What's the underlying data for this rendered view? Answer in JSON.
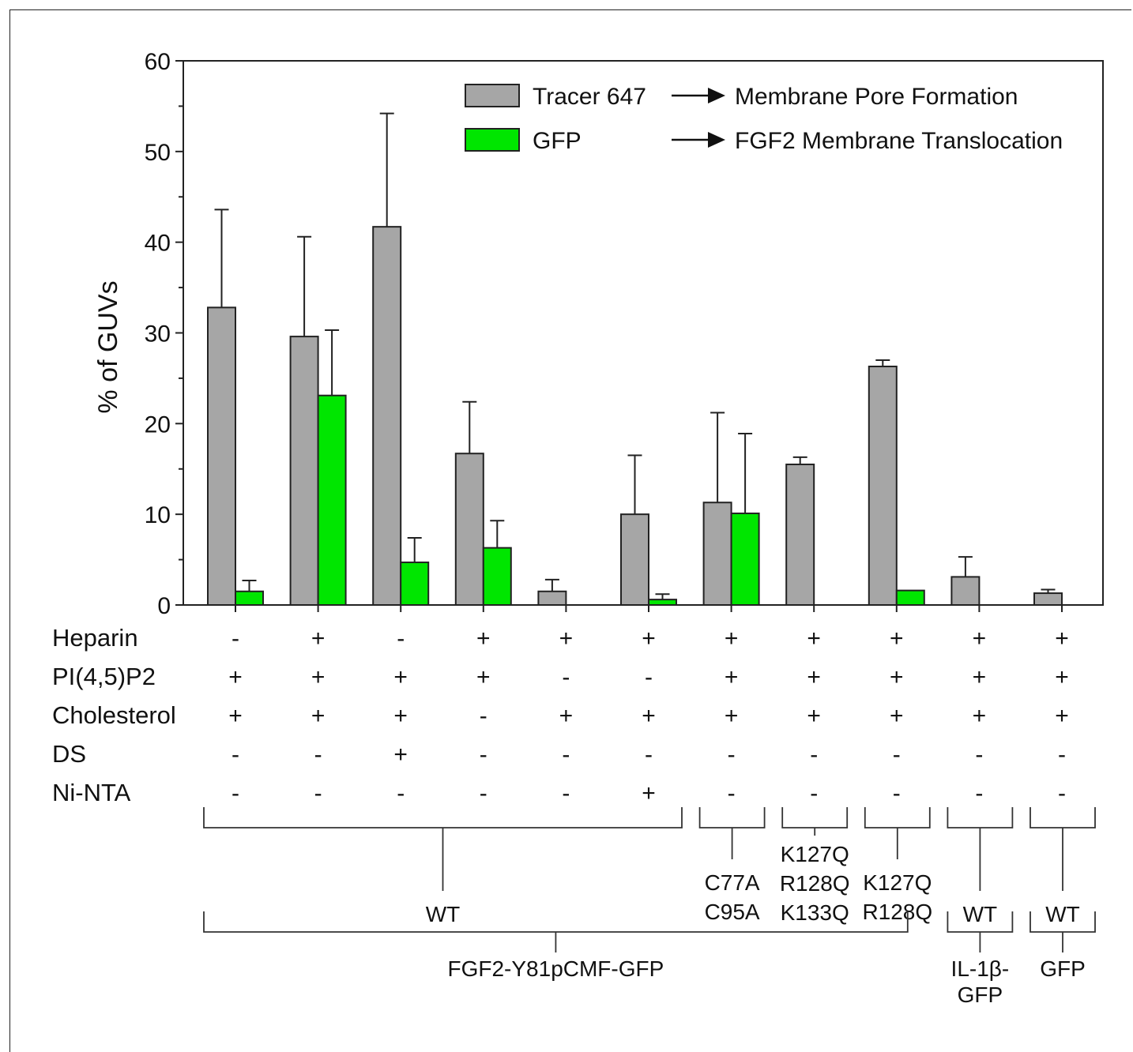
{
  "chart_data": {
    "type": "bar",
    "ylabel": "% of GUVs",
    "ylim": [
      0,
      60
    ],
    "yticks": [
      0,
      10,
      20,
      30,
      40,
      50,
      60
    ],
    "grid": false,
    "legend_position": "top-right",
    "series": [
      {
        "name": "Tracer 647",
        "meaning": "Membrane Pore Formation",
        "color": "#a6a6a6",
        "values": [
          32.8,
          29.6,
          41.7,
          16.7,
          1.5,
          10.0,
          11.3,
          15.5,
          26.3,
          3.1,
          1.3
        ],
        "errors": [
          10.8,
          11.0,
          12.5,
          5.7,
          1.3,
          6.5,
          9.9,
          0.8,
          0.7,
          2.2,
          0.4
        ]
      },
      {
        "name": "GFP",
        "meaning": "FGF2 Membrane Translocation",
        "color": "#00e600",
        "values": [
          1.5,
          23.1,
          4.7,
          6.3,
          0,
          0.6,
          10.1,
          0,
          1.6,
          0,
          0
        ],
        "errors": [
          1.2,
          7.2,
          2.7,
          3.0,
          0,
          0.6,
          8.8,
          0,
          0,
          0,
          0
        ]
      }
    ],
    "conditions": [
      {
        "label": "Heparin",
        "values": [
          "-",
          "+",
          "-",
          "+",
          "+",
          "+",
          "+",
          "+",
          "+",
          "+",
          "+"
        ]
      },
      {
        "label": "PI(4,5)P2",
        "values": [
          "+",
          "+",
          "+",
          "+",
          "-",
          "-",
          "+",
          "+",
          "+",
          "+",
          "+"
        ]
      },
      {
        "label": "Cholesterol",
        "values": [
          "+",
          "+",
          "+",
          "-",
          "+",
          "+",
          "+",
          "+",
          "+",
          "+",
          "+"
        ]
      },
      {
        "label": "DS",
        "values": [
          "-",
          "-",
          "+",
          "-",
          "-",
          "-",
          "-",
          "-",
          "-",
          "-",
          "-"
        ]
      },
      {
        "label": "Ni-NTA",
        "values": [
          "-",
          "-",
          "-",
          "-",
          "-",
          "+",
          "-",
          "-",
          "-",
          "-",
          "-"
        ]
      }
    ],
    "variant_groups": [
      {
        "from": 0,
        "to": 5,
        "lines": [
          "WT"
        ]
      },
      {
        "from": 6,
        "to": 6,
        "lines": [
          "C77A",
          "C95A"
        ]
      },
      {
        "from": 7,
        "to": 7,
        "lines": [
          "K127Q",
          "R128Q",
          "K133Q"
        ]
      },
      {
        "from": 8,
        "to": 8,
        "lines": [
          "K127Q",
          "R128Q"
        ]
      },
      {
        "from": 9,
        "to": 9,
        "lines": [
          "WT"
        ]
      },
      {
        "from": 10,
        "to": 10,
        "lines": [
          "WT"
        ]
      }
    ],
    "protein_groups": [
      {
        "from": 0,
        "to": 8,
        "lines": [
          "FGF2-Y81pCMF-GFP"
        ]
      },
      {
        "from": 9,
        "to": 9,
        "lines": [
          "IL-1β-",
          "GFP"
        ]
      },
      {
        "from": 10,
        "to": 10,
        "lines": [
          "GFP"
        ]
      }
    ]
  }
}
